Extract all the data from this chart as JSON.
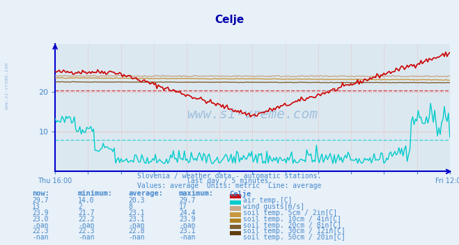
{
  "title": "Celje",
  "subtitle1": "Slovenia / weather data - automatic stations.",
  "subtitle2": "last day / 5 minutes.",
  "subtitle3": "Values: average  Units: metric  Line: average",
  "bg_color": "#e8f0f8",
  "plot_bg_color": "#dce8f0",
  "grid_color_v": "#f0a0a0",
  "grid_color_h": "#f0a0a0",
  "axis_color": "#0000cc",
  "text_color": "#4488cc",
  "title_color": "#0000aa",
  "ylim": [
    0,
    32
  ],
  "yticks": [
    10,
    20
  ],
  "xlabel_left": "Thu 16:00",
  "xlabel_right": "Fri 12:00",
  "n_points": 288,
  "series": {
    "air_temp": {
      "color": "#cc0000",
      "avg": 20.3,
      "min": 14.0,
      "max": 29.7,
      "now": 29.7
    },
    "wind_gusts": {
      "color": "#00cccc",
      "avg": 8,
      "min": 2,
      "max": 17,
      "now": 13
    },
    "soil_5cm": {
      "color": "#c8a888",
      "avg": 23.1,
      "min": 21.7,
      "max": 24.4,
      "now": 23.9
    },
    "soil_10cm": {
      "color": "#c89840",
      "avg": 23.1,
      "min": 22.2,
      "max": 23.9,
      "now": 23.0
    },
    "soil_20cm": {
      "color": "#b08020",
      "avg": null,
      "min": null,
      "max": null,
      "now": null
    },
    "soil_30cm": {
      "color": "#806030",
      "avg": 22.8,
      "min": 22.3,
      "max": 23.1,
      "now": 22.3
    },
    "soil_50cm": {
      "color": "#604010",
      "avg": null,
      "min": null,
      "max": null,
      "now": null
    }
  },
  "legend": [
    {
      "label": "air temp.[C]",
      "color": "#cc0000"
    },
    {
      "label": "wind gusts[m/s]",
      "color": "#00cccc"
    },
    {
      "label": "soil temp. 5cm / 2in[C]",
      "color": "#c8a888"
    },
    {
      "label": "soil temp. 10cm / 4in[C]",
      "color": "#c89840"
    },
    {
      "label": "soil temp. 20cm / 8in[C]",
      "color": "#b08020"
    },
    {
      "label": "soil temp. 30cm / 12in[C]",
      "color": "#806030"
    },
    {
      "label": "soil temp. 50cm / 20in[C]",
      "color": "#604010"
    }
  ],
  "table_headers": [
    "now:",
    "minimum:",
    "average:",
    "maximum:",
    "Celje"
  ],
  "table_rows": [
    [
      "29.7",
      "14.0",
      "20.3",
      "29.7",
      "air temp.[C]",
      "#cc0000"
    ],
    [
      "13",
      "2",
      "8",
      "17",
      "wind gusts[m/s]",
      "#00cccc"
    ],
    [
      "23.9",
      "21.7",
      "23.1",
      "24.4",
      "soil temp. 5cm / 2in[C]",
      "#c8a888"
    ],
    [
      "23.0",
      "22.2",
      "23.1",
      "23.9",
      "soil temp. 10cm / 4in[C]",
      "#c89840"
    ],
    [
      "-nan",
      "-nan",
      "-nan",
      "-nan",
      "soil temp. 20cm / 8in[C]",
      "#b08020"
    ],
    [
      "22.3",
      "22.3",
      "22.8",
      "23.1",
      "soil temp. 30cm / 12in[C]",
      "#806030"
    ],
    [
      "-nan",
      "-nan",
      "-nan",
      "-nan",
      "soil temp. 50cm / 20in[C]",
      "#604010"
    ]
  ]
}
